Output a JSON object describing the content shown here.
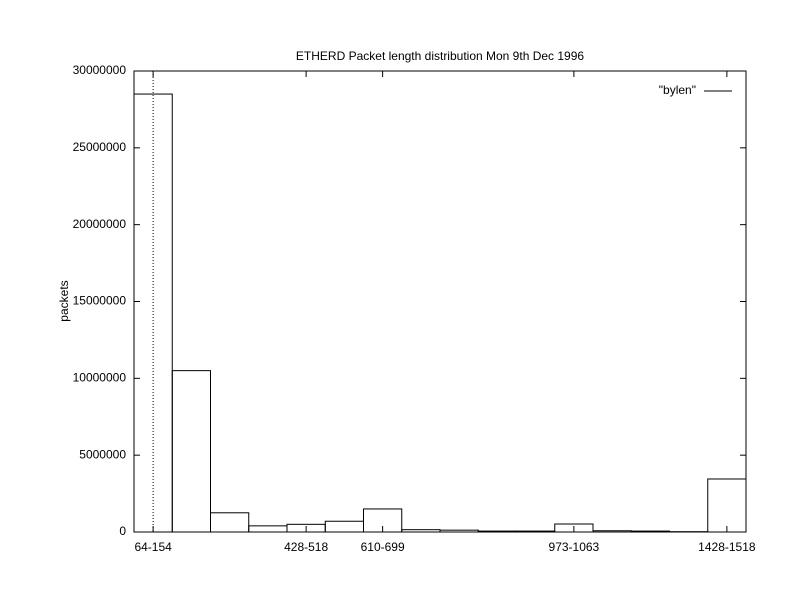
{
  "chart_data": {
    "type": "bar",
    "title": "ETHERD Packet length distribution Mon 9th Dec 1996",
    "y_label": "packets",
    "categories": [
      "64-154",
      null,
      null,
      null,
      "428-518",
      null,
      "610-699",
      null,
      null,
      null,
      null,
      "973-1063",
      null,
      null,
      null,
      "1428-1518"
    ],
    "series": [
      {
        "name": "\"bylen\"",
        "color": "#000000",
        "values": [
          28500000,
          10500000,
          1250000,
          400000,
          500000,
          700000,
          1500000,
          150000,
          120000,
          60000,
          60000,
          520000,
          80000,
          60000,
          20000,
          3450000
        ]
      }
    ],
    "ylim": [
      0,
      30000000
    ],
    "yticks": [
      0,
      5000000,
      10000000,
      15000000,
      20000000,
      25000000,
      30000000
    ],
    "legend": "top-right"
  }
}
